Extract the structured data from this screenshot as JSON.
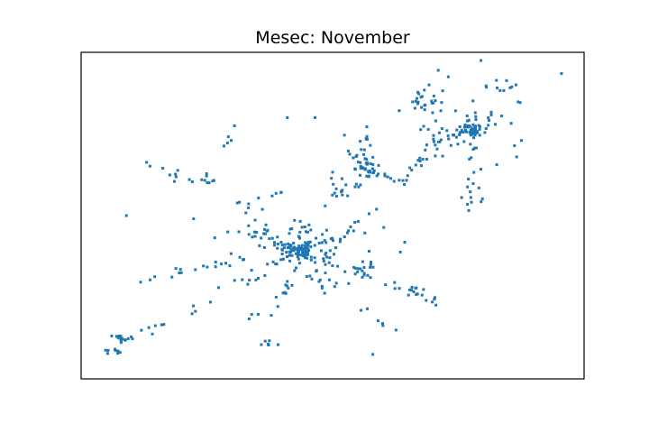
{
  "chart_data": {
    "type": "scatter",
    "title": "Mesec: November",
    "xlabel": "",
    "ylabel": "",
    "axes_visible": false,
    "grid": false,
    "xlim": [
      0,
      100
    ],
    "ylim": [
      0,
      100
    ],
    "marker_color": "#1f77b4",
    "marker_shape": "square",
    "clusters": [
      {
        "cx": 43.5,
        "cy": 39.5,
        "sx": 1.6,
        "sy": 1.2,
        "n": 55
      },
      {
        "cx": 44.5,
        "cy": 41.0,
        "sx": 6.0,
        "sy": 4.0,
        "n": 70
      },
      {
        "cx": 77.5,
        "cy": 76.0,
        "sx": 1.2,
        "sy": 0.9,
        "n": 35
      },
      {
        "cx": 76.0,
        "cy": 77.0,
        "sx": 5.5,
        "sy": 4.5,
        "n": 40
      },
      {
        "cx": 68.5,
        "cy": 85.5,
        "sx": 1.5,
        "sy": 2.0,
        "n": 22
      },
      {
        "cx": 56.5,
        "cy": 64.5,
        "sx": 1.2,
        "sy": 1.5,
        "n": 22
      },
      {
        "cx": 56.0,
        "cy": 72.0,
        "sx": 1.0,
        "sy": 2.5,
        "n": 10
      },
      {
        "cx": 56.0,
        "cy": 33.5,
        "sx": 1.2,
        "sy": 1.5,
        "n": 14
      },
      {
        "cx": 50.0,
        "cy": 58.0,
        "sx": 1.8,
        "sy": 3.0,
        "n": 14
      },
      {
        "cx": 8.0,
        "cy": 12.5,
        "sx": 1.0,
        "sy": 1.0,
        "n": 14
      },
      {
        "cx": 6.5,
        "cy": 8.5,
        "sx": 1.2,
        "sy": 0.6,
        "n": 8
      },
      {
        "cx": 25.5,
        "cy": 61.0,
        "sx": 1.0,
        "sy": 0.7,
        "n": 8
      },
      {
        "cx": 37.0,
        "cy": 10.5,
        "sx": 1.0,
        "sy": 0.8,
        "n": 7
      },
      {
        "cx": 83.5,
        "cy": 90.5,
        "sx": 1.8,
        "sy": 1.2,
        "n": 10
      },
      {
        "cx": 66.0,
        "cy": 28.0,
        "sx": 1.5,
        "sy": 1.0,
        "n": 6
      },
      {
        "cx": 77.5,
        "cy": 55.0,
        "sx": 2.0,
        "sy": 2.2,
        "n": 10
      },
      {
        "cx": 70.0,
        "cy": 72.0,
        "sx": 2.0,
        "sy": 2.0,
        "n": 8
      },
      {
        "cx": 34.0,
        "cy": 20.0,
        "sx": 1.0,
        "sy": 1.0,
        "n": 3
      }
    ],
    "paths": [
      {
        "x0": 43,
        "y0": 39,
        "x1": 73,
        "y1": 22,
        "n": 30,
        "jitter": 1.0
      },
      {
        "x0": 43,
        "y0": 39,
        "x1": 60,
        "y1": 51,
        "n": 16,
        "jitter": 1.2
      },
      {
        "x0": 40,
        "y0": 38,
        "x1": 31,
        "y1": 57,
        "n": 16,
        "jitter": 1.2
      },
      {
        "x0": 42,
        "y0": 39,
        "x1": 12,
        "y1": 30,
        "n": 20,
        "jitter": 1.5
      },
      {
        "x0": 40,
        "y0": 37,
        "x1": 20,
        "y1": 19,
        "n": 14,
        "jitter": 1.8
      },
      {
        "x0": 43,
        "y0": 37,
        "x1": 38,
        "y1": 18,
        "n": 12,
        "jitter": 1.0
      },
      {
        "x0": 45,
        "y0": 36,
        "x1": 62,
        "y1": 16,
        "n": 14,
        "jitter": 1.5
      },
      {
        "x0": 44,
        "y0": 41,
        "x1": 30,
        "y1": 45,
        "n": 10,
        "jitter": 1.2
      },
      {
        "x0": 52,
        "y0": 56,
        "x1": 59,
        "y1": 63,
        "n": 10,
        "jitter": 1.0
      },
      {
        "x0": 56,
        "y0": 64,
        "x1": 64,
        "y1": 60,
        "n": 12,
        "jitter": 1.5
      },
      {
        "x0": 64,
        "y0": 60,
        "x1": 70,
        "y1": 72,
        "n": 12,
        "jitter": 1.2
      },
      {
        "x0": 70,
        "y0": 72,
        "x1": 77,
        "y1": 76,
        "n": 10,
        "jitter": 1.0
      },
      {
        "x0": 77,
        "y0": 76,
        "x1": 87,
        "y1": 85,
        "n": 10,
        "jitter": 1.2
      },
      {
        "x0": 77,
        "y0": 76,
        "x1": 79,
        "y1": 59,
        "n": 10,
        "jitter": 1.5
      },
      {
        "x0": 56,
        "y0": 64,
        "x1": 51,
        "y1": 76,
        "n": 8,
        "jitter": 1.0
      },
      {
        "x0": 43,
        "y0": 39,
        "x1": 50,
        "y1": 22,
        "n": 8,
        "jitter": 1.5
      },
      {
        "x0": 27,
        "y0": 70,
        "x1": 30,
        "y1": 74,
        "n": 4,
        "jitter": 0.8
      },
      {
        "x0": 9,
        "y0": 12,
        "x1": 17,
        "y1": 18,
        "n": 8,
        "jitter": 1.2
      },
      {
        "x0": 14,
        "y0": 66,
        "x1": 21,
        "y1": 60,
        "n": 10,
        "jitter": 1.5
      },
      {
        "x0": 34,
        "y0": 52,
        "x1": 43,
        "y1": 60,
        "n": 6,
        "jitter": 1.0
      }
    ],
    "outliers": [
      [
        95.5,
        93.5
      ],
      [
        79.5,
        97.5
      ],
      [
        46.5,
        80.0
      ],
      [
        41.0,
        80.0
      ],
      [
        30.5,
        77.5
      ],
      [
        9.0,
        50.0
      ],
      [
        58.0,
        7.5
      ],
      [
        70.5,
        79.0
      ],
      [
        73.0,
        92.5
      ],
      [
        71.0,
        94.5
      ]
    ]
  }
}
